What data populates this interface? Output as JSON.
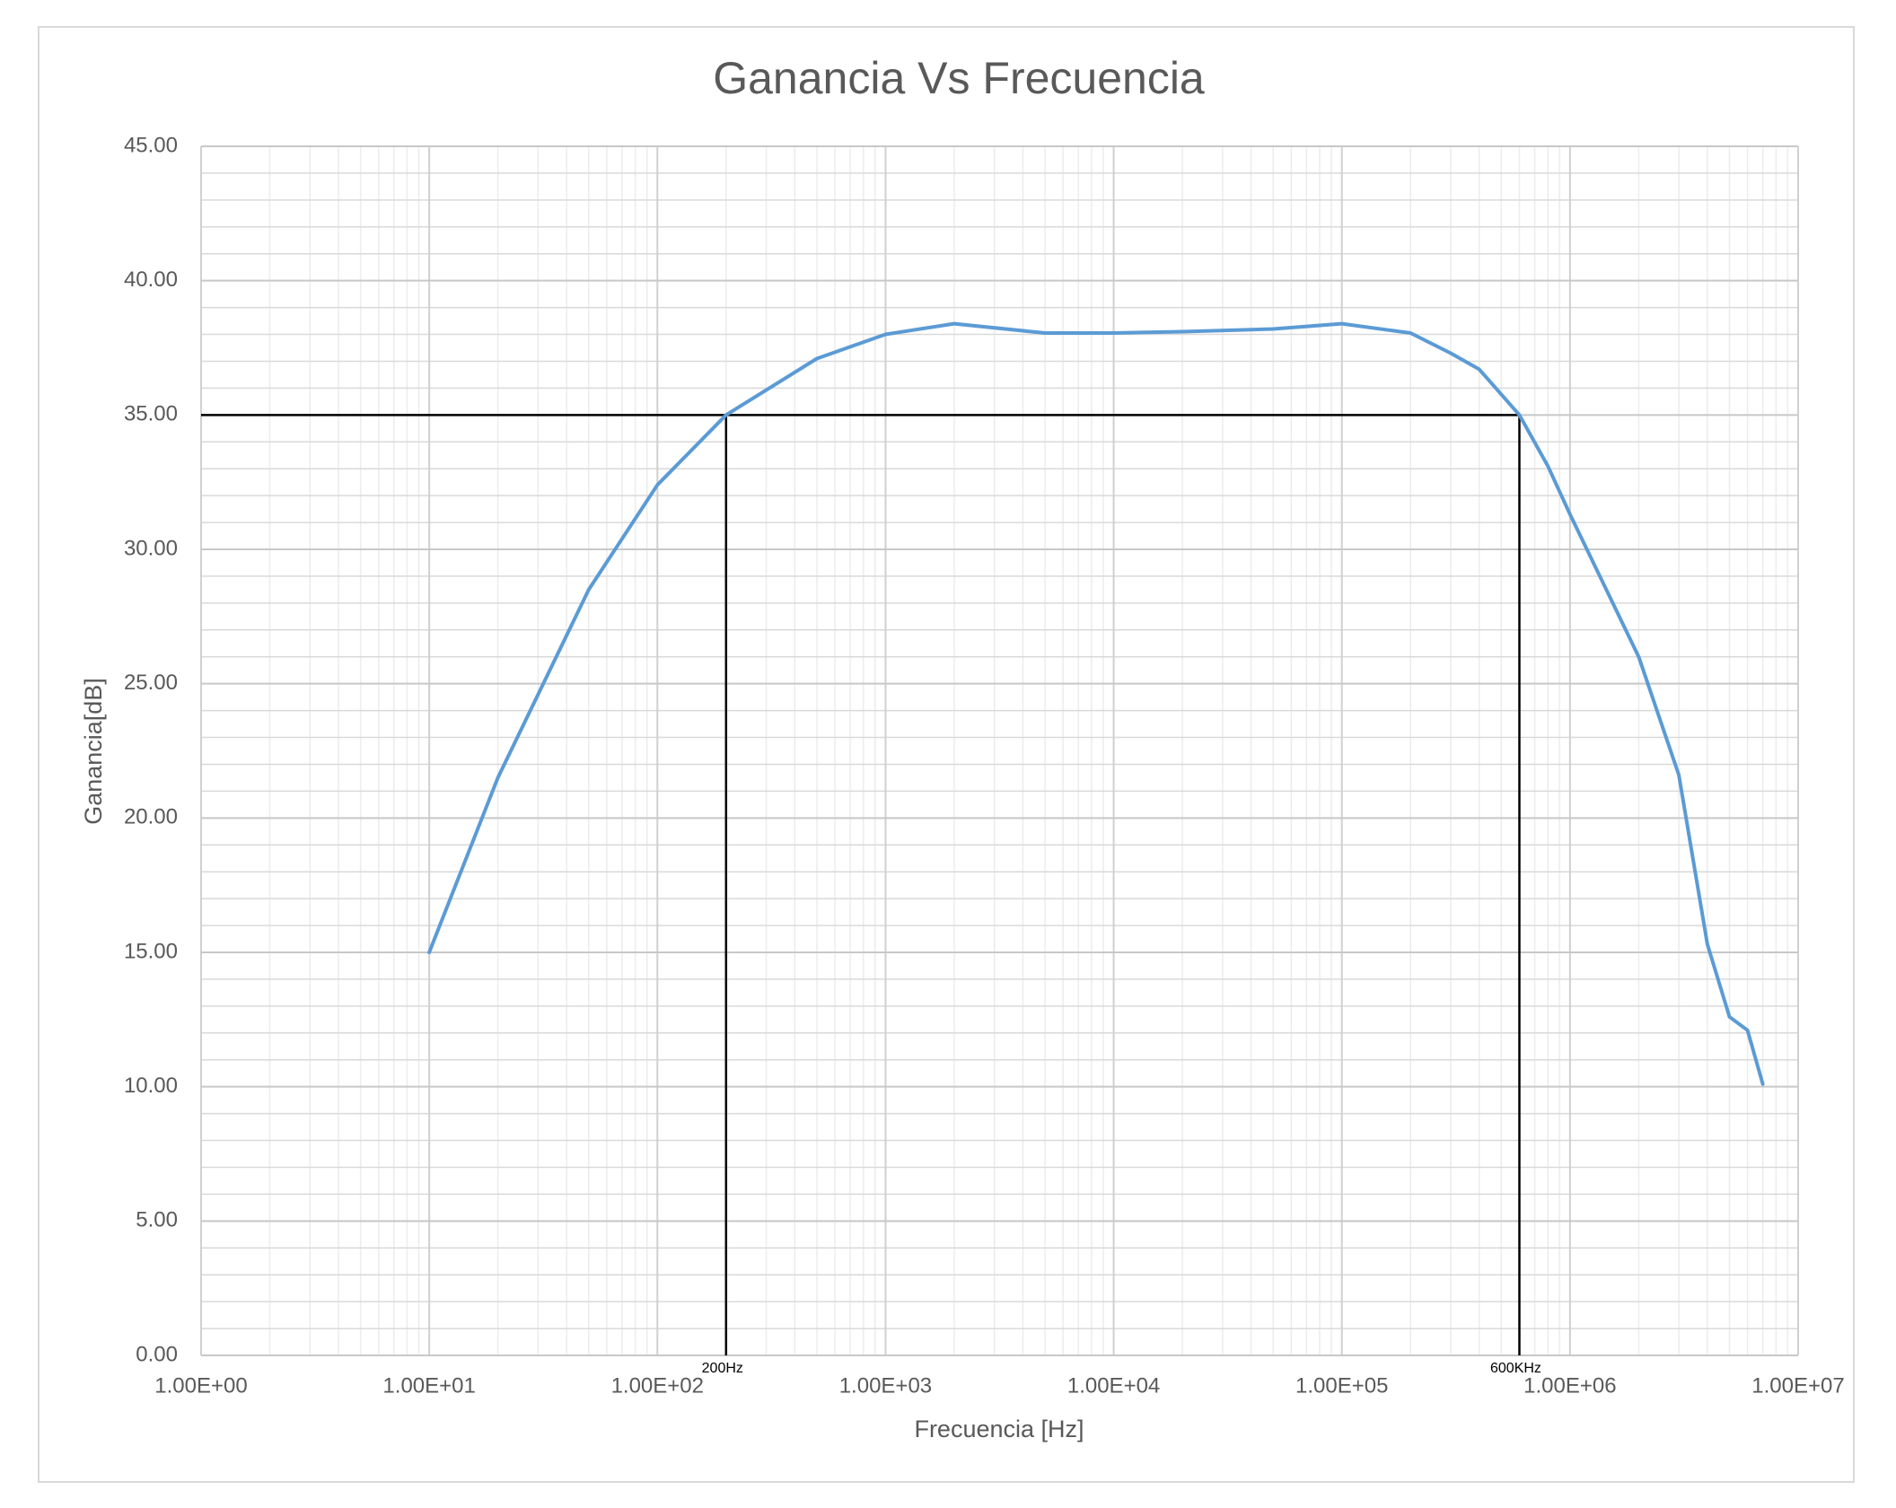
{
  "chart_data": {
    "type": "line",
    "title": "Ganancia Vs Frecuencia",
    "x_label": "Frecuencia [Hz]",
    "y_label": "Ganancia[dB]",
    "x_scale": "log",
    "grid": true,
    "minor_grid": true,
    "xlim": [
      1,
      10000000
    ],
    "ylim": [
      0,
      45
    ],
    "xticks": [
      {
        "value": 1,
        "label": "1.00E+00"
      },
      {
        "value": 10,
        "label": "1.00E+01"
      },
      {
        "value": 100,
        "label": "1.00E+02"
      },
      {
        "value": 1000,
        "label": "1.00E+03"
      },
      {
        "value": 10000,
        "label": "1.00E+04"
      },
      {
        "value": 100000,
        "label": "1.00E+05"
      },
      {
        "value": 1000000,
        "label": "1.00E+06"
      },
      {
        "value": 10000000,
        "label": "1.00E+07"
      }
    ],
    "yticks": [
      {
        "value": 0,
        "label": "0.00"
      },
      {
        "value": 5,
        "label": "5.00"
      },
      {
        "value": 10,
        "label": "10.00"
      },
      {
        "value": 15,
        "label": "15.00"
      },
      {
        "value": 20,
        "label": "20.00"
      },
      {
        "value": 25,
        "label": "25.00"
      },
      {
        "value": 30,
        "label": "30.00"
      },
      {
        "value": 35,
        "label": "35.00"
      },
      {
        "value": 40,
        "label": "40.00"
      },
      {
        "value": 45,
        "label": "45.00"
      }
    ],
    "series": [
      {
        "name": "Ganancia",
        "color": "#5b9bd5",
        "x": [
          10,
          20,
          50,
          100,
          200,
          500,
          1000,
          2000,
          5000,
          10000,
          20000,
          50000,
          100000,
          200000,
          300000,
          400000,
          600000,
          800000,
          1000000,
          2000000,
          3000000,
          4000000,
          5000000,
          6000000,
          7000000
        ],
        "values": [
          15.0,
          21.5,
          28.5,
          32.4,
          35.0,
          37.1,
          38.0,
          38.4,
          38.05,
          38.05,
          38.1,
          38.2,
          38.4,
          38.05,
          37.3,
          36.7,
          35.0,
          33.1,
          31.3,
          26.0,
          21.6,
          15.3,
          12.6,
          12.1,
          10.1
        ]
      }
    ],
    "markers": [
      {
        "label": "200Hz",
        "x": 200,
        "y": 35
      },
      {
        "label": "600KHz",
        "x": 600000,
        "y": 35
      }
    ]
  }
}
